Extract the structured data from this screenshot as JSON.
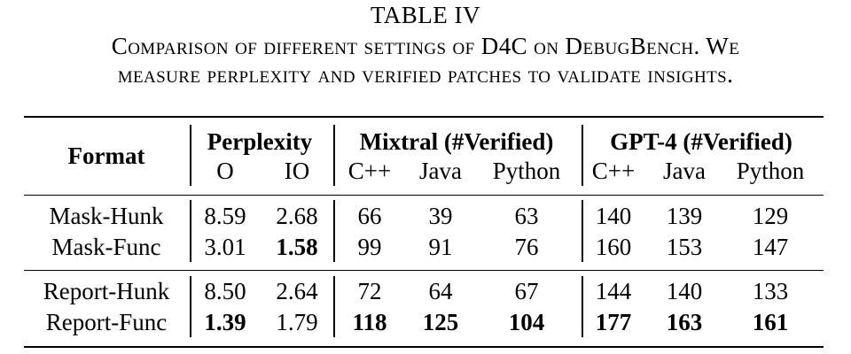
{
  "caption": {
    "label": "TABLE IV",
    "line1": "Comparison of different settings of D4C on DebugBench. We",
    "line2": "measure perplexity and verified patches to validate insights."
  },
  "table": {
    "header": {
      "format": "Format",
      "perplexity": "Perplexity",
      "mixtral": "Mixtral (#Verified)",
      "gpt4": "GPT-4 (#Verified)",
      "sub": [
        "O",
        "IO",
        "C++",
        "Java",
        "Python",
        "C++",
        "Java",
        "Python"
      ]
    },
    "rows": [
      {
        "format": "Mask-Hunk",
        "cells": [
          "8.59",
          "2.68",
          "66",
          "39",
          "63",
          "140",
          "139",
          "129"
        ],
        "bold": [
          false,
          false,
          false,
          false,
          false,
          false,
          false,
          false
        ]
      },
      {
        "format": "Mask-Func",
        "cells": [
          "3.01",
          "1.58",
          "99",
          "91",
          "76",
          "160",
          "153",
          "147"
        ],
        "bold": [
          false,
          true,
          false,
          false,
          false,
          false,
          false,
          false
        ]
      },
      {
        "format": "Report-Hunk",
        "cells": [
          "8.50",
          "2.64",
          "72",
          "64",
          "67",
          "144",
          "140",
          "133"
        ],
        "bold": [
          false,
          false,
          false,
          false,
          false,
          false,
          false,
          false
        ]
      },
      {
        "format": "Report-Func",
        "cells": [
          "1.39",
          "1.79",
          "118",
          "125",
          "104",
          "177",
          "163",
          "161"
        ],
        "bold": [
          true,
          false,
          true,
          true,
          true,
          true,
          true,
          true
        ]
      }
    ]
  }
}
